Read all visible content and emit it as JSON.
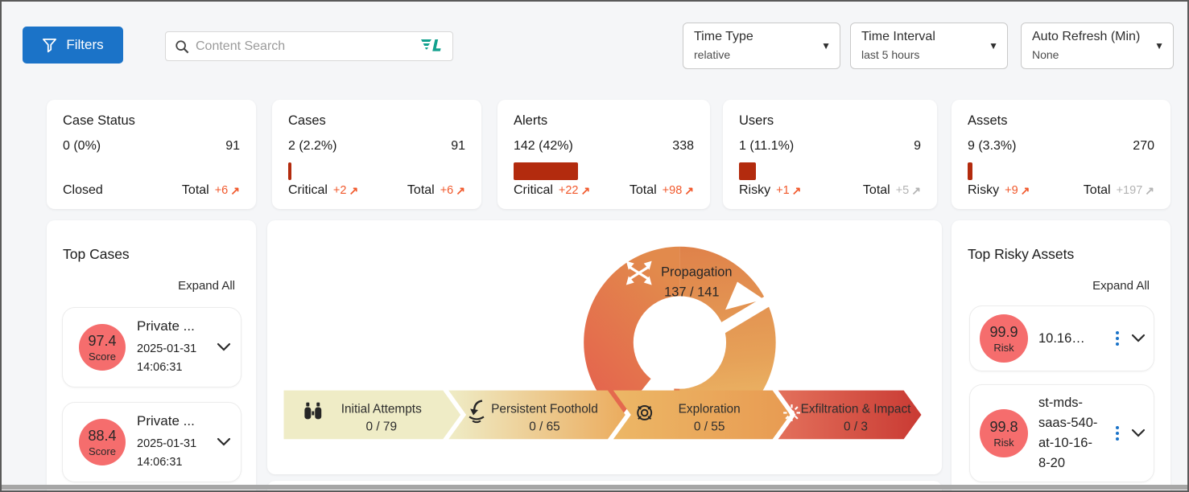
{
  "toolbar": {
    "filters_label": "Filters",
    "search_placeholder": "Content Search",
    "dropdowns": [
      {
        "label": "Time Type",
        "value": "relative"
      },
      {
        "label": "Time Interval",
        "value": "last 5 hours"
      },
      {
        "label": "Auto Refresh (Min)",
        "value": "None"
      }
    ]
  },
  "stat_cards": [
    {
      "title": "Case Status",
      "left_value": "0 (0%)",
      "right_value": "91",
      "bar_pct": 0,
      "footer_left": {
        "label": "Closed"
      },
      "footer_right": {
        "label": "Total",
        "delta": "+6"
      }
    },
    {
      "title": "Cases",
      "left_value": "2 (2.2%)",
      "right_value": "91",
      "bar_pct": 2.2,
      "footer_left": {
        "label": "Critical",
        "delta": "+2"
      },
      "footer_right": {
        "label": "Total",
        "delta": "+6"
      }
    },
    {
      "title": "Alerts",
      "left_value": "142 (42%)",
      "right_value": "338",
      "bar_pct": 42,
      "footer_left": {
        "label": "Critical",
        "delta": "+22"
      },
      "footer_right": {
        "label": "Total",
        "delta": "+98"
      }
    },
    {
      "title": "Users",
      "left_value": "1 (11.1%)",
      "right_value": "9",
      "bar_pct": 11.1,
      "footer_left": {
        "label": "Risky",
        "delta": "+1"
      },
      "footer_right": {
        "label": "Total",
        "delta": "+5"
      }
    },
    {
      "title": "Assets",
      "left_value": "9 (3.3%)",
      "right_value": "270",
      "bar_pct": 3.3,
      "footer_left": {
        "label": "Risky",
        "delta": "+9"
      },
      "footer_right": {
        "label": "Total",
        "delta": "+197"
      }
    }
  ],
  "top_cases": {
    "title": "Top Cases",
    "expand_all": "Expand All",
    "cases": [
      {
        "score": "97.4",
        "score_label": "Score",
        "name": "Private ...",
        "timestamp_date": "2025-01-31",
        "timestamp_time": "14:06:31"
      },
      {
        "score": "88.4",
        "score_label": "Score",
        "name": "Private ...",
        "timestamp_date": "2025-01-31",
        "timestamp_time": "14:06:31"
      }
    ]
  },
  "attack_chain": {
    "loop_stage": {
      "name": "Propagation",
      "value": "137 / 141"
    },
    "stages": [
      {
        "name": "Initial Attempts",
        "value": "0 / 79"
      },
      {
        "name": "Persistent Foothold",
        "value": "0 / 65"
      },
      {
        "name": "Exploration",
        "value": "0 / 55"
      },
      {
        "name": "Exfiltration & Impact",
        "value": "0 / 3"
      }
    ]
  },
  "top_risky_assets": {
    "title": "Top Risky Assets",
    "expand_all": "Expand All",
    "assets": [
      {
        "risk": "99.9",
        "risk_label": "Risk",
        "name": "10.16…"
      },
      {
        "risk": "99.8",
        "risk_label": "Risk",
        "name": "st-mds-saas-540-at-10-16-8-20"
      }
    ]
  },
  "icons": {
    "trend_up": "↗",
    "caret_down": "▼"
  },
  "colors": {
    "accent_blue": "#1b73c8",
    "delta_orange": "#f1582b",
    "bar_red": "#b32b0e",
    "score_salmon": "#f56d6d",
    "teal_logo": "#12a18e",
    "chevron_yellow": "#efecc6",
    "chevron_orange": "#e9a85b",
    "chevron_red": "#cd3c34"
  }
}
